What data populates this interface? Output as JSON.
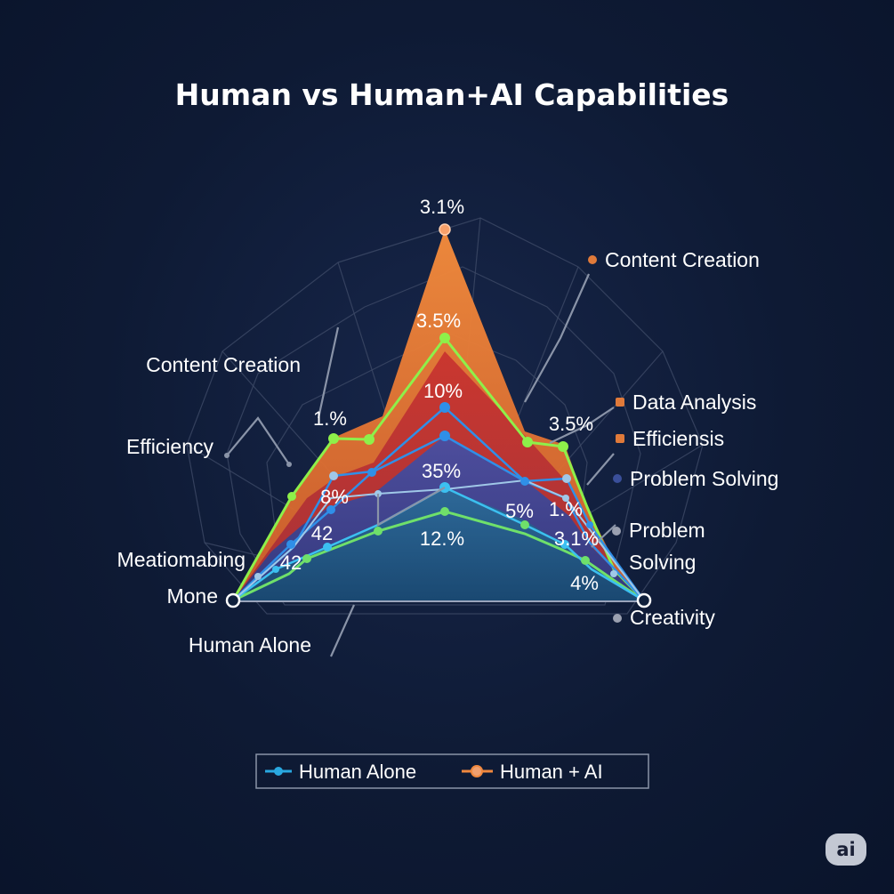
{
  "chart_data": {
    "type": "radar",
    "title": "Human vs Human+AI Capabilities",
    "axis_labels_left": [
      "Content Creation",
      "Efficiency",
      "Meatiomabing",
      "Mone",
      "Human Alone"
    ],
    "axis_labels_right": [
      {
        "text": "Content Creation",
        "color": "#e07a3a"
      },
      {
        "text": "Data Analysis",
        "color": "#e07a3a"
      },
      {
        "text": "Efficiensis",
        "color": "#e07a3a"
      },
      {
        "text": "Problem Solving",
        "color": "#3a4f9a"
      },
      {
        "text": "Problem",
        "color": "#9aa0b0"
      },
      {
        "text": "Solving",
        "color": null
      },
      {
        "text": "Creativity",
        "color": "#9aa0b0"
      }
    ],
    "data_labels": [
      "3.1%",
      "3.5%",
      "10%",
      "35%",
      "12.%",
      "1.%",
      "8%",
      "42",
      "42",
      "3.5%",
      "5%",
      "1.%",
      "3.1%",
      "4%"
    ],
    "series": [
      {
        "name": "Human + AI",
        "color": "#f0883e"
      },
      {
        "name": "Human Alone",
        "color": "#29a8e0"
      }
    ],
    "legend": {
      "placement": "bottom",
      "items": [
        "Human Alone",
        "Human + AI"
      ]
    }
  },
  "badge": "ai"
}
